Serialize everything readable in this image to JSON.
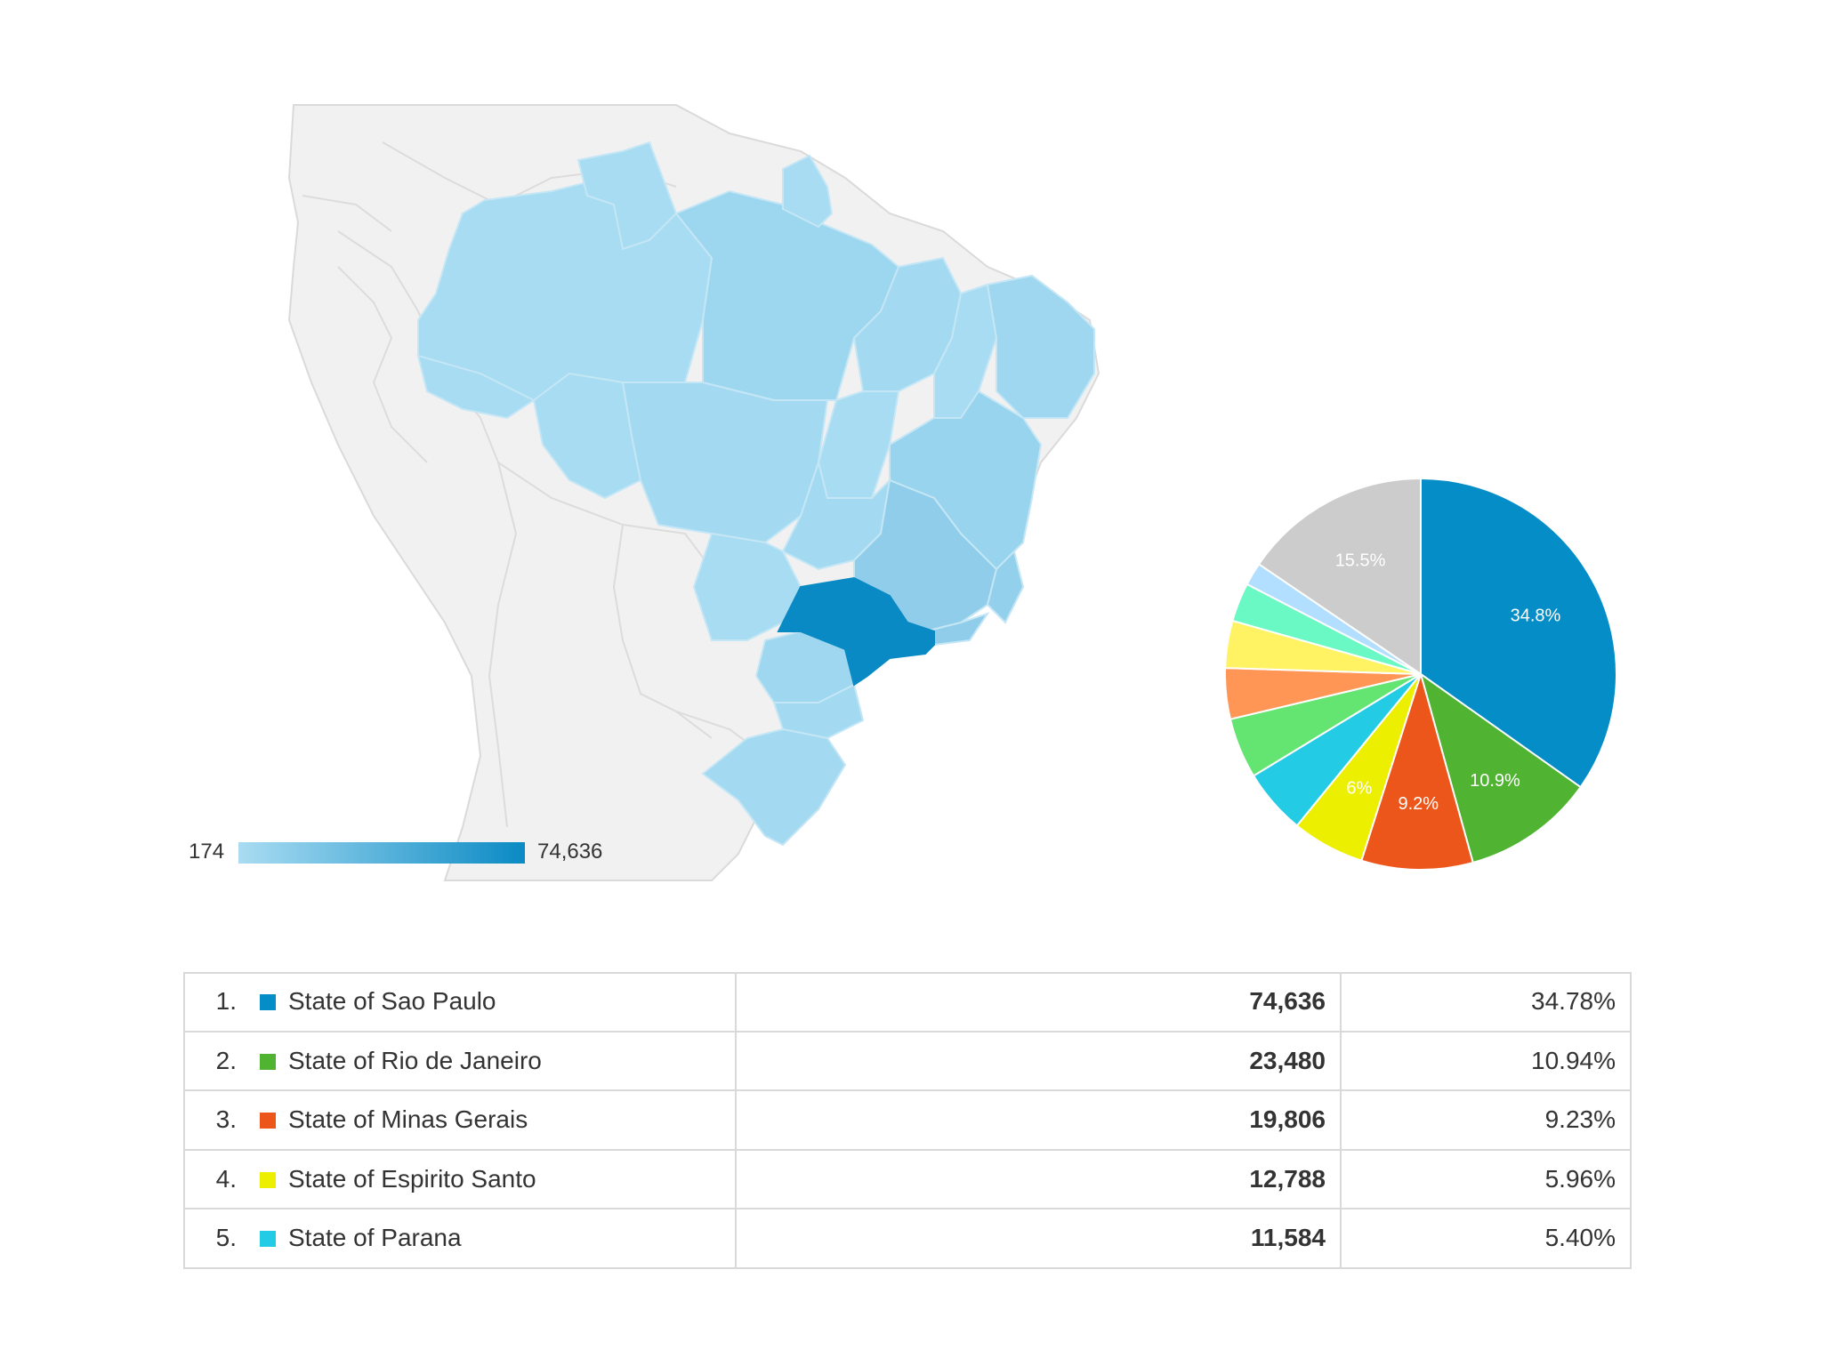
{
  "chart_data": [
    {
      "type": "map",
      "region": "Brazil",
      "legend": {
        "min": "174",
        "max": "74,636",
        "min_color": "#a9dcf2",
        "max_color": "#0a8ac4"
      },
      "highlighted_region": "State of Sao Paulo",
      "colors": {
        "land_other": "#f1f1f1",
        "border": "#d6d6d6",
        "region_light": "#a6dbf1",
        "region_mid": "#8fcdea",
        "region_top": "#0a8ac4"
      }
    },
    {
      "type": "pie",
      "slices": [
        {
          "name": "State of Sao Paulo",
          "value": 34.8,
          "label": "34.8%",
          "color": "#058dc7"
        },
        {
          "name": "State of Rio de Janeiro",
          "value": 10.9,
          "label": "10.9%",
          "color": "#50b432"
        },
        {
          "name": "State of Minas Gerais",
          "value": 9.2,
          "label": "9.2%",
          "color": "#ed561b"
        },
        {
          "name": "State of Espirito Santo",
          "value": 6.0,
          "label": "6%",
          "color": "#edef00"
        },
        {
          "name": "State of Parana",
          "value": 5.4,
          "label": "",
          "color": "#24cbe5"
        },
        {
          "name": "",
          "value": 5.0,
          "label": "",
          "color": "#64e572"
        },
        {
          "name": "",
          "value": 4.2,
          "label": "",
          "color": "#ff9655"
        },
        {
          "name": "",
          "value": 3.9,
          "label": "",
          "color": "#fff263"
        },
        {
          "name": "",
          "value": 3.2,
          "label": "",
          "color": "#6af9c4"
        },
        {
          "name": "",
          "value": 1.9,
          "label": "",
          "color": "#b2deff"
        },
        {
          "name": "",
          "value": 15.5,
          "label": "15.5%",
          "color": "#cccccc"
        }
      ]
    },
    {
      "type": "table",
      "rows": [
        {
          "rank": "1.",
          "name": "State of Sao Paulo",
          "value": "74,636",
          "percent": "34.78%",
          "color": "#058dc7"
        },
        {
          "rank": "2.",
          "name": "State of Rio de Janeiro",
          "value": "23,480",
          "percent": "10.94%",
          "color": "#50b432"
        },
        {
          "rank": "3.",
          "name": "State of Minas Gerais",
          "value": "19,806",
          "percent": "9.23%",
          "color": "#ed561b"
        },
        {
          "rank": "4.",
          "name": "State of Espirito Santo",
          "value": "12,788",
          "percent": "5.96%",
          "color": "#edef00"
        },
        {
          "rank": "5.",
          "name": "State of Parana",
          "value": "11,584",
          "percent": "5.40%",
          "color": "#24cbe5"
        }
      ]
    }
  ]
}
